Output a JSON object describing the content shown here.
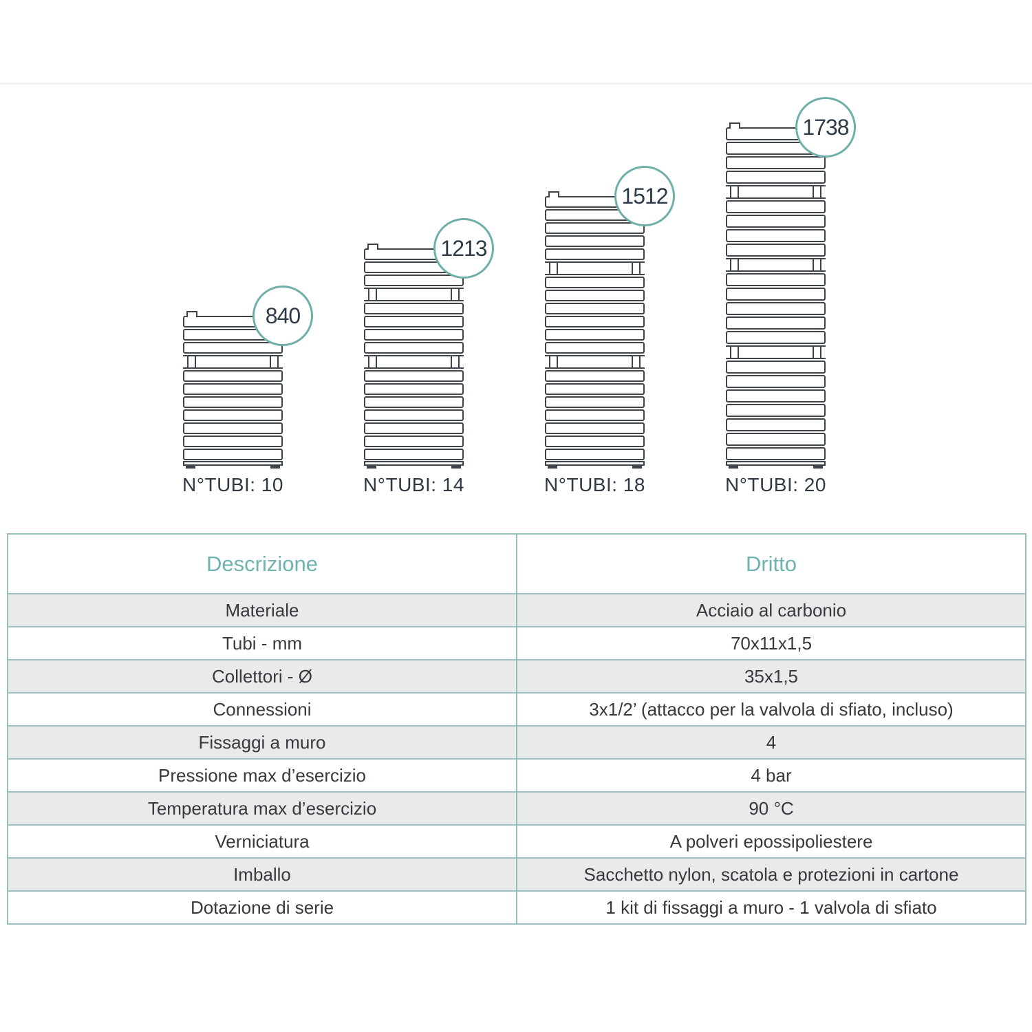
{
  "diagram": {
    "radiators": [
      {
        "badge": "840",
        "label": "N°TUBI: 10",
        "tubes": 10,
        "sections": [
          3,
          7
        ]
      },
      {
        "badge": "1213",
        "label": "N°TUBI: 14",
        "tubes": 14,
        "sections": [
          3,
          4,
          7
        ]
      },
      {
        "badge": "1512",
        "label": "N°TUBI: 18",
        "tubes": 18,
        "sections": [
          5,
          6,
          7
        ]
      },
      {
        "badge": "1738",
        "label": "N°TUBI: 20",
        "tubes": 20,
        "sections": [
          4,
          4,
          5,
          7
        ]
      }
    ]
  },
  "table": {
    "col1_header": "Descrizione",
    "col2_header": "Dritto",
    "rows": [
      {
        "label": "Materiale",
        "value": "Acciaio al carbonio"
      },
      {
        "label": "Tubi - mm",
        "value": "70x11x1,5"
      },
      {
        "label": "Collettori - Ø",
        "value": "35x1,5"
      },
      {
        "label": "Connessioni",
        "value": "3x1/2’ (attacco per la valvola di sfiato, incluso)"
      },
      {
        "label": "Fissaggi a muro",
        "value": "4"
      },
      {
        "label": "Pressione max d’esercizio",
        "value": "4 bar"
      },
      {
        "label": "Temperatura max d’esercizio",
        "value": "90 °C"
      },
      {
        "label": "Verniciatura",
        "value": "A polveri epossipoliestere"
      },
      {
        "label": "Imballo",
        "value": "Sacchetto nylon, scatola e protezioni in cartone"
      },
      {
        "label": "Dotazione di serie",
        "value": "1 kit di fissaggi a muro - 1 valvola di sfiato"
      }
    ]
  },
  "colors": {
    "accent_teal": "#6fafa9",
    "table_border": "#98c1be",
    "header_text": "#6fb3b0",
    "alt_row_bg": "#e9eaea",
    "drawing_line": "#3f444a",
    "text_dark": "#36393e"
  }
}
